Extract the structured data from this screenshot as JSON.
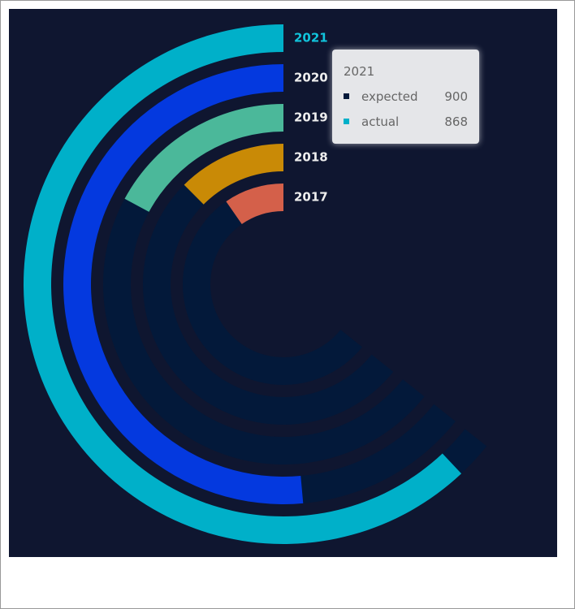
{
  "chart_data": {
    "type": "polar-bar",
    "categories": [
      "2021",
      "2020",
      "2019",
      "2018",
      "2017"
    ],
    "anglelim": [
      0,
      1400
    ],
    "series": [
      {
        "name": "expected",
        "color": "#03193a",
        "values": [
          900,
          900,
          900,
          900,
          900
        ]
      },
      {
        "name": "actual",
        "color": "#00b0c9",
        "colors": [
          "#00b0c9",
          "#0439df",
          "#4bb89a",
          "#c98a06",
          "#d4604a"
        ],
        "values": [
          868,
          720,
          240,
          175,
          135
        ]
      }
    ]
  }
}
